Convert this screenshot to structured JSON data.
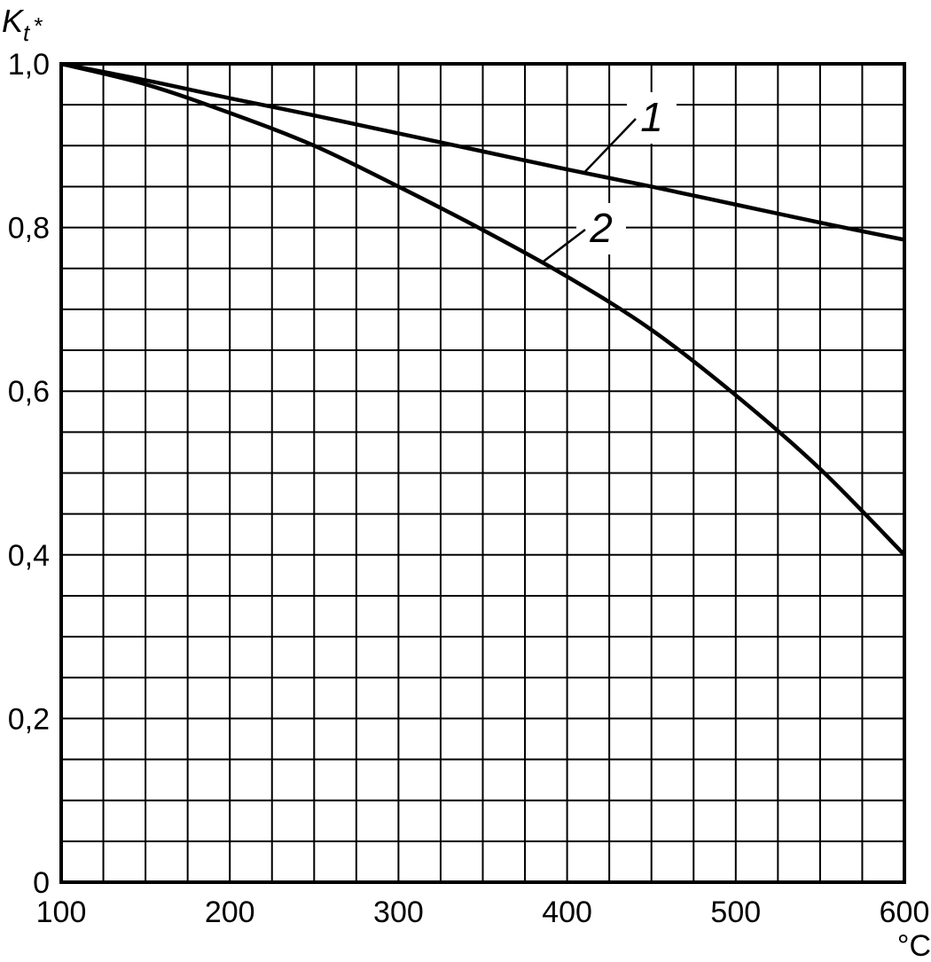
{
  "chart_data": {
    "type": "line",
    "title": "",
    "ylabel": {
      "main": "K",
      "sub": "t",
      "mark": "*"
    },
    "xlabel": "°C",
    "xlim": [
      100,
      600
    ],
    "ylim": [
      0,
      1.0
    ],
    "x_ticks": [
      100,
      200,
      300,
      400,
      500,
      600
    ],
    "x_tick_labels": [
      "100",
      "200",
      "300",
      "400",
      "500",
      "600"
    ],
    "y_ticks": [
      0,
      0.2,
      0.4,
      0.6,
      0.8,
      1.0
    ],
    "y_tick_labels": [
      "0",
      "0,2",
      "0,4",
      "0,6",
      "0,8",
      "1,0"
    ],
    "grid": {
      "on": true,
      "x_step": 25,
      "y_step": 0.05
    },
    "series": [
      {
        "name": "1",
        "x": [
          100,
          150,
          200,
          250,
          300,
          350,
          400,
          450,
          500,
          550,
          600
        ],
        "y": [
          1.0,
          0.98,
          0.958,
          0.937,
          0.915,
          0.893,
          0.871,
          0.85,
          0.828,
          0.806,
          0.785
        ]
      },
      {
        "name": "2",
        "x": [
          100,
          150,
          200,
          250,
          300,
          350,
          400,
          450,
          500,
          550,
          600
        ],
        "y": [
          1.0,
          0.975,
          0.94,
          0.9,
          0.85,
          0.797,
          0.74,
          0.675,
          0.595,
          0.505,
          0.4
        ]
      }
    ]
  }
}
